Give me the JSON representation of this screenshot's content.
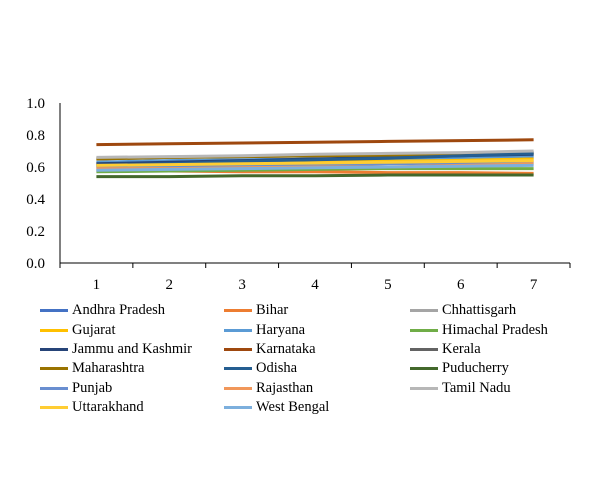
{
  "chart_data": {
    "type": "line",
    "title": "",
    "xlabel": "",
    "ylabel": "",
    "categories": [
      "1",
      "2",
      "3",
      "4",
      "5",
      "6",
      "7"
    ],
    "ylim": [
      0.0,
      1.0
    ],
    "yticks": [
      "0.0",
      "0.2",
      "0.4",
      "0.6",
      "0.8",
      "1.0"
    ],
    "grid": false,
    "legend_position": "bottom",
    "series": [
      {
        "name": "Andhra Pradesh",
        "color": "#4472C4",
        "values": [
          0.6,
          0.61,
          0.62,
          0.63,
          0.64,
          0.65,
          0.66
        ]
      },
      {
        "name": "Bihar",
        "color": "#ED7D31",
        "values": [
          0.58,
          0.575,
          0.57,
          0.57,
          0.565,
          0.565,
          0.56
        ]
      },
      {
        "name": "Chhattisgarh",
        "color": "#A5A5A5",
        "values": [
          0.61,
          0.615,
          0.62,
          0.625,
          0.63,
          0.635,
          0.64
        ]
      },
      {
        "name": "Gujarat",
        "color": "#FFC000",
        "values": [
          0.62,
          0.625,
          0.63,
          0.635,
          0.64,
          0.645,
          0.65
        ]
      },
      {
        "name": "Haryana",
        "color": "#5B9BD5",
        "values": [
          0.63,
          0.64,
          0.645,
          0.65,
          0.655,
          0.66,
          0.67
        ]
      },
      {
        "name": "Himachal Pradesh",
        "color": "#70AD47",
        "values": [
          0.57,
          0.575,
          0.58,
          0.585,
          0.59,
          0.59,
          0.59
        ]
      },
      {
        "name": "Jammu and Kashmir",
        "color": "#264478",
        "values": [
          0.62,
          0.63,
          0.64,
          0.65,
          0.66,
          0.67,
          0.68
        ]
      },
      {
        "name": "Karnataka",
        "color": "#9E480E",
        "values": [
          0.74,
          0.745,
          0.75,
          0.755,
          0.76,
          0.765,
          0.77
        ]
      },
      {
        "name": "Kerala",
        "color": "#636363",
        "values": [
          0.65,
          0.66,
          0.665,
          0.67,
          0.675,
          0.68,
          0.69
        ]
      },
      {
        "name": "Maharashtra",
        "color": "#997300",
        "values": [
          0.65,
          0.66,
          0.665,
          0.67,
          0.675,
          0.685,
          0.69
        ]
      },
      {
        "name": "Odisha",
        "color": "#255E91",
        "values": [
          0.61,
          0.62,
          0.635,
          0.645,
          0.655,
          0.67,
          0.685
        ]
      },
      {
        "name": "Puducherry",
        "color": "#43682B",
        "values": [
          0.54,
          0.54,
          0.545,
          0.545,
          0.55,
          0.55,
          0.55
        ]
      },
      {
        "name": "Punjab",
        "color": "#698ED0",
        "values": [
          0.6,
          0.605,
          0.61,
          0.615,
          0.62,
          0.625,
          0.63
        ]
      },
      {
        "name": "Rajasthan",
        "color": "#F1975A",
        "values": [
          0.59,
          0.59,
          0.595,
          0.6,
          0.6,
          0.61,
          0.62
        ]
      },
      {
        "name": "Tamil Nadu",
        "color": "#B7B7B7",
        "values": [
          0.66,
          0.665,
          0.67,
          0.68,
          0.685,
          0.69,
          0.7
        ]
      },
      {
        "name": "Uttarakhand",
        "color": "#FFCD33",
        "values": [
          0.61,
          0.615,
          0.62,
          0.625,
          0.63,
          0.635,
          0.64
        ]
      },
      {
        "name": "West Bengal",
        "color": "#7CAFDD",
        "values": [
          0.58,
          0.585,
          0.59,
          0.595,
          0.6,
          0.605,
          0.61
        ]
      }
    ]
  }
}
